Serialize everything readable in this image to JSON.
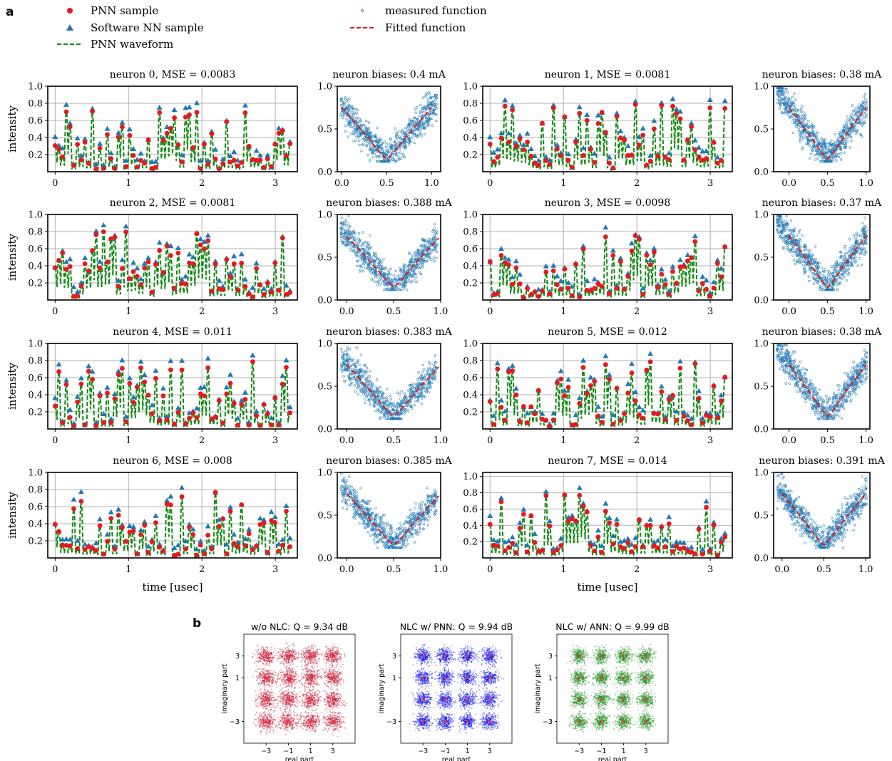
{
  "panel_labels": {
    "a": "a",
    "b": "b"
  },
  "legend": {
    "pnn_sample": "PNN sample",
    "software_sample": "Software NN sample",
    "pnn_waveform": "PNN waveform",
    "measured": "measured function",
    "fitted": "Fitted function"
  },
  "colors": {
    "pnn_sample": "#e41a1c",
    "software_sample": "#1f77b4",
    "pnn_waveform": "#138a13",
    "measured": "#1f77b4",
    "fitted": "#e41a1c",
    "const_nlc_none": "#c0102c",
    "const_pnn": "#1010e8",
    "const_ann": "#1a8a1a",
    "grid": "#b0b0b0"
  },
  "chart_data": [
    {
      "type": "line",
      "title": "neuron 0, MSE = 0.0083",
      "ylabel": "intensity",
      "xlabel": "",
      "ylim": [
        0,
        1.0
      ],
      "xlim": [
        -0.1,
        3.3
      ],
      "yticks": [
        0.2,
        0.4,
        0.6,
        0.8,
        1.0
      ],
      "xticks": [
        0,
        1,
        2,
        3
      ],
      "grid": true,
      "seed": 11
    },
    {
      "type": "scatter",
      "title": "neuron biases: 0.4 mA",
      "xlim": [
        -0.05,
        1.1
      ],
      "ylim": [
        0,
        1.0
      ],
      "yticks": [
        0.0,
        0.5,
        1.0
      ],
      "xticks": [
        0.0,
        0.5,
        1.0
      ],
      "fit_center": 0.5,
      "fit_min": 0.15,
      "grid": false
    },
    {
      "type": "line",
      "title": "neuron 1, MSE = 0.0081",
      "ylabel": "",
      "xlabel": "",
      "ylim": [
        0,
        1.0
      ],
      "xlim": [
        -0.1,
        3.3
      ],
      "yticks": [
        0.2,
        0.4,
        0.6,
        0.8,
        1.0
      ],
      "xticks": [
        0,
        1,
        2,
        3
      ],
      "grid": true,
      "seed": 23
    },
    {
      "type": "scatter",
      "title": "neuron biases: 0.38 mA",
      "xlim": [
        -0.2,
        1.05
      ],
      "ylim": [
        0,
        1.0
      ],
      "yticks": [
        0.0,
        0.5,
        1.0
      ],
      "xticks": [
        0.0,
        0.5,
        1.0
      ],
      "fit_center": 0.5,
      "fit_min": 0.15,
      "grid": false
    },
    {
      "type": "line",
      "title": "neuron 2, MSE = 0.0081",
      "ylabel": "intensity",
      "xlabel": "",
      "ylim": [
        0,
        1.0
      ],
      "xlim": [
        -0.1,
        3.3
      ],
      "yticks": [
        0.2,
        0.4,
        0.6,
        0.8,
        1.0
      ],
      "xticks": [
        0,
        1,
        2,
        3
      ],
      "grid": true,
      "seed": 37
    },
    {
      "type": "scatter",
      "title": "neuron biases: 0.388 mA",
      "xlim": [
        -0.1,
        1.0
      ],
      "ylim": [
        0,
        1.0
      ],
      "yticks": [
        0.0,
        0.5,
        1.0
      ],
      "xticks": [
        0.0,
        0.5,
        1.0
      ],
      "fit_center": 0.5,
      "fit_min": 0.15,
      "grid": false
    },
    {
      "type": "line",
      "title": "neuron 3, MSE = 0.0098",
      "ylabel": "",
      "xlabel": "",
      "ylim": [
        0,
        1.0
      ],
      "xlim": [
        -0.1,
        3.3
      ],
      "yticks": [
        0.2,
        0.4,
        0.6,
        0.8,
        1.0
      ],
      "xticks": [
        0,
        1,
        2,
        3
      ],
      "grid": true,
      "seed": 41
    },
    {
      "type": "scatter",
      "title": "neuron biases: 0.37 mA",
      "xlim": [
        -0.2,
        1.05
      ],
      "ylim": [
        0,
        1.0
      ],
      "yticks": [
        0.0,
        0.5,
        1.0
      ],
      "xticks": [
        0.0,
        0.5,
        1.0
      ],
      "fit_center": 0.5,
      "fit_min": 0.15,
      "grid": false
    },
    {
      "type": "line",
      "title": "neuron 4, MSE = 0.011",
      "ylabel": "intensity",
      "xlabel": "",
      "ylim": [
        0,
        1.0
      ],
      "xlim": [
        -0.1,
        3.3
      ],
      "yticks": [
        0.2,
        0.4,
        0.6,
        0.8,
        1.0
      ],
      "xticks": [
        0,
        1,
        2,
        3
      ],
      "grid": true,
      "seed": 53
    },
    {
      "type": "scatter",
      "title": "neuron biases: 0.383 mA",
      "xlim": [
        -0.1,
        1.0
      ],
      "ylim": [
        0,
        1.0
      ],
      "yticks": [
        0.0,
        0.5,
        1.0
      ],
      "xticks": [
        0.0,
        0.5,
        1.0
      ],
      "fit_center": 0.5,
      "fit_min": 0.15,
      "grid": false
    },
    {
      "type": "line",
      "title": "neuron 5, MSE = 0.012",
      "ylabel": "",
      "xlabel": "",
      "ylim": [
        0,
        1.0
      ],
      "xlim": [
        -0.1,
        3.3
      ],
      "yticks": [
        0.2,
        0.4,
        0.6,
        0.8,
        1.0
      ],
      "xticks": [
        0,
        1,
        2,
        3
      ],
      "grid": true,
      "seed": 67
    },
    {
      "type": "scatter",
      "title": "neuron biases: 0.38 mA",
      "xlim": [
        -0.2,
        1.05
      ],
      "ylim": [
        0,
        1.0
      ],
      "yticks": [
        0.0,
        0.5,
        1.0
      ],
      "xticks": [
        0.0,
        0.5,
        1.0
      ],
      "fit_center": 0.5,
      "fit_min": 0.15,
      "grid": false
    },
    {
      "type": "line",
      "title": "neuron 6, MSE = 0.008",
      "ylabel": "intensity",
      "xlabel": "time [usec]",
      "ylim": [
        0,
        1.0
      ],
      "xlim": [
        -0.1,
        3.3
      ],
      "yticks": [
        0.2,
        0.4,
        0.6,
        0.8,
        1.0
      ],
      "xticks": [
        0,
        1,
        2,
        3
      ],
      "grid": true,
      "seed": 71
    },
    {
      "type": "scatter",
      "title": "neuron biases: 0.385 mA",
      "xlim": [
        -0.1,
        1.0
      ],
      "ylim": [
        0,
        1.0
      ],
      "yticks": [
        0.0,
        0.5,
        1.0
      ],
      "xticks": [
        0.0,
        0.5,
        1.0
      ],
      "fit_center": 0.5,
      "fit_min": 0.15,
      "grid": false
    },
    {
      "type": "line",
      "title": "neuron 7, MSE = 0.014",
      "ylabel": "",
      "xlabel": "time [usec]",
      "ylim": [
        0,
        1.05
      ],
      "xlim": [
        -0.1,
        3.3
      ],
      "yticks": [
        0.2,
        0.4,
        0.6,
        0.8,
        1.0
      ],
      "xticks": [
        0,
        1,
        2,
        3
      ],
      "grid": true,
      "seed": 83
    },
    {
      "type": "scatter",
      "title": "neuron biases: 0.391 mA",
      "xlim": [
        -0.1,
        1.05
      ],
      "ylim": [
        0,
        1.0
      ],
      "yticks": [
        0.0,
        0.5,
        1.0
      ],
      "xticks": [
        0.0,
        0.5,
        1.0
      ],
      "fit_center": 0.5,
      "fit_min": 0.15,
      "grid": false
    },
    {
      "type": "scatter",
      "title": "w/o NLC: Q = 9.34 dB",
      "xlabel": "real part",
      "ylabel": "imaginary part",
      "xlim": [
        -5,
        5
      ],
      "ylim": [
        -5,
        5
      ],
      "xticks": [
        -3,
        -1,
        1,
        3
      ],
      "yticks": [
        -3,
        1,
        3
      ],
      "xtick_labels": [
        "−3",
        "−1",
        "1",
        "3"
      ],
      "ytick_labels": [
        "−3",
        "1",
        "3"
      ],
      "constellation": [
        -3,
        -1,
        1,
        3
      ],
      "spread": 0.42,
      "color_key": "const_nlc_none",
      "seed": 101
    },
    {
      "type": "scatter",
      "title": "NLC w/ PNN: Q = 9.94 dB",
      "xlabel": "real part",
      "ylabel": "imaginary part",
      "xlim": [
        -5,
        5
      ],
      "ylim": [
        -5,
        5
      ],
      "xticks": [
        -3,
        -1,
        1,
        3
      ],
      "yticks": [
        -3,
        1,
        3
      ],
      "xtick_labels": [
        "−3",
        "−1",
        "1",
        "3"
      ],
      "ytick_labels": [
        "−3",
        "1",
        "3"
      ],
      "constellation": [
        -3,
        -1,
        1,
        3
      ],
      "spread": 0.36,
      "color_key": "const_pnn",
      "seed": 202
    },
    {
      "type": "scatter",
      "title": "NLC w/ ANN: Q = 9.99 dB",
      "xlabel": "real part",
      "ylabel": "imaginary part",
      "xlim": [
        -5,
        5
      ],
      "ylim": [
        -5,
        5
      ],
      "xticks": [
        -3,
        -1,
        1,
        3
      ],
      "yticks": [
        -3,
        1,
        3
      ],
      "xtick_labels": [
        "−3",
        "−1",
        "1",
        "3"
      ],
      "ytick_labels": [
        "−3",
        "1",
        "3"
      ],
      "constellation": [
        -3,
        -1,
        1,
        3
      ],
      "spread": 0.35,
      "color_key": "const_ann",
      "seed": 303
    }
  ]
}
